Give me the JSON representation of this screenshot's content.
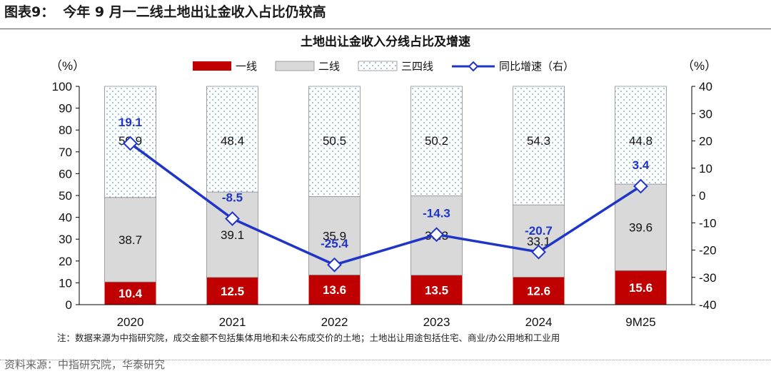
{
  "figure": {
    "label": "图表9：",
    "title": "今年 9 月一二线土地出让金收入占比仍较高",
    "source": "资料来源：中指研究院，华泰研究"
  },
  "colors": {
    "tier1": "#c00000",
    "tier2": "#d9d9d9",
    "tier34_dots": "#4f9bd6",
    "growth_line": "#1f35c8"
  },
  "chart_data": {
    "type": "bar",
    "stacked": true,
    "title": "土地出让金收入分线占比及增速",
    "left_unit": "（%）",
    "right_unit": "（%）",
    "categories": [
      "2020",
      "2021",
      "2022",
      "2023",
      "2024",
      "9M25"
    ],
    "ylim": [
      0,
      100
    ],
    "yticks": [
      0,
      10,
      20,
      30,
      40,
      50,
      60,
      70,
      80,
      90,
      100
    ],
    "y2lim": [
      -40,
      40
    ],
    "y2ticks": [
      -40,
      -30,
      -20,
      -10,
      0,
      10,
      20,
      30,
      40
    ],
    "legend_position": "top",
    "series": [
      {
        "name": "一线",
        "kind": "bar",
        "values": [
          10.4,
          12.5,
          13.6,
          13.5,
          12.6,
          15.6
        ]
      },
      {
        "name": "二线",
        "kind": "bar",
        "values": [
          38.7,
          39.1,
          35.9,
          36.3,
          33.1,
          39.6
        ]
      },
      {
        "name": "三四线",
        "kind": "bar",
        "values": [
          50.9,
          48.4,
          50.5,
          50.2,
          54.3,
          44.8
        ]
      },
      {
        "name": "同比增速（右）",
        "kind": "line",
        "axis": "right",
        "values": [
          19.1,
          -8.5,
          -25.4,
          -14.3,
          -20.7,
          3.4
        ]
      }
    ],
    "note": "注：数据来源为中指研究院，成交金额不包括集体用地和未公布成交价的土地；土地出让用途包括住宅、商业/办公用地和工业用"
  }
}
